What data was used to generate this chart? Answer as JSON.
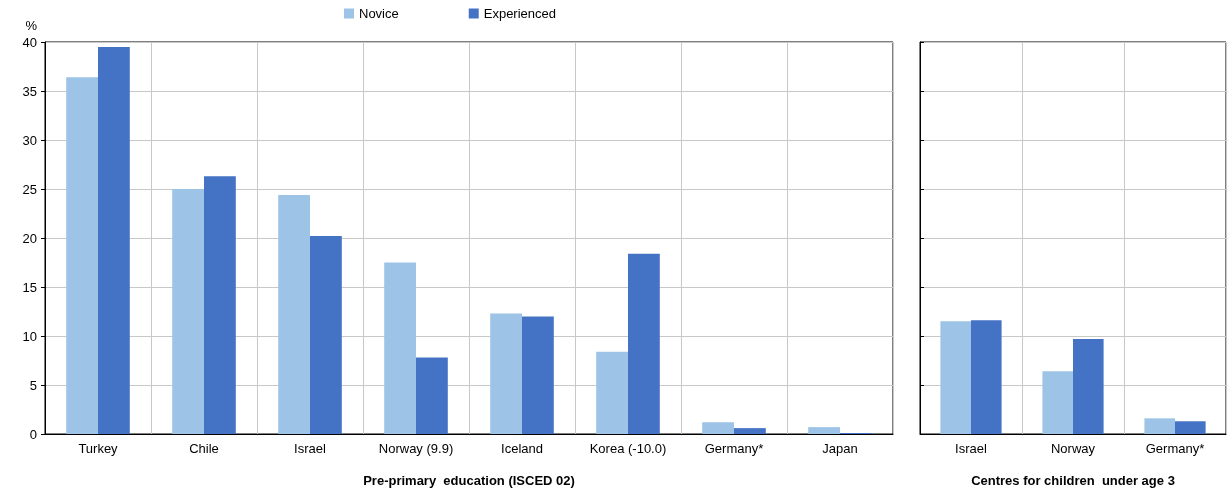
{
  "chart_data": [
    {
      "type": "bar",
      "xlabel": "Pre-primary  education (ISCED 02)",
      "ylabel": "%",
      "categories": [
        "Turkey",
        "Chile",
        "Israel",
        "Norway (9.9)",
        "Iceland",
        "Korea (-10.0)",
        "Germany*",
        "Japan"
      ],
      "series": [
        {
          "name": "Novice",
          "color": "#9dc3e6",
          "values": [
            36.4,
            25.0,
            24.4,
            17.5,
            12.3,
            8.4,
            1.2,
            0.7
          ]
        },
        {
          "name": "Experienced",
          "color": "#4472c4",
          "values": [
            39.5,
            26.3,
            20.2,
            7.8,
            12.0,
            18.4,
            0.6,
            0.1
          ]
        }
      ],
      "ylim": [
        0,
        40
      ],
      "yticks": [
        0,
        5,
        10,
        15,
        20,
        25,
        30,
        35,
        40
      ],
      "grid": true,
      "legend": "top"
    },
    {
      "type": "bar",
      "xlabel": "Centres for children  under age 3",
      "categories": [
        "Israel",
        "Norway",
        "Germany*"
      ],
      "series": [
        {
          "color": "#9dc3e6",
          "values": [
            11.5,
            6.4,
            1.6
          ]
        },
        {
          "color": "#4472c4",
          "values": [
            11.6,
            9.7,
            1.3
          ]
        }
      ],
      "ylim": [
        0,
        40
      ],
      "yticks": [
        0,
        5,
        10,
        15,
        20,
        25,
        30,
        35,
        40
      ],
      "grid": true,
      "tick_labels": "x",
      "legend": false
    }
  ]
}
